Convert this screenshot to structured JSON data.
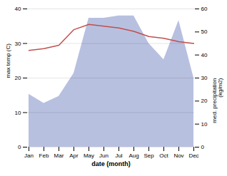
{
  "chart_data": {
    "type": "line",
    "xlabel": "date (month)",
    "ylabel": "max temp (C)",
    "y2label": "med. precipitation\n(kg/m2)",
    "categories": [
      "Jan",
      "Feb",
      "Mar",
      "Apr",
      "May",
      "Jun",
      "Jul",
      "Aug",
      "Sep",
      "Oct",
      "Nov",
      "Dec"
    ],
    "series": [
      {
        "type": "area",
        "axis": "y2",
        "color": "#b8c0e0",
        "values": [
          23,
          19,
          22,
          32,
          56,
          56,
          57,
          57,
          45,
          38,
          55,
          30
        ]
      },
      {
        "type": "line",
        "color": "#c0504d",
        "values": [
          28,
          28.5,
          29.5,
          34,
          35.5,
          35.0,
          34.5,
          33.5,
          32.0,
          31.5,
          30.5,
          30.0
        ]
      }
    ],
    "ylim": [
      0,
      40
    ],
    "yticks": [
      0,
      10,
      20,
      30,
      40
    ],
    "y2lim": [
      0,
      60
    ],
    "y2ticks": [
      0,
      10,
      20,
      30,
      40,
      50,
      60
    ],
    "grid": true
  }
}
